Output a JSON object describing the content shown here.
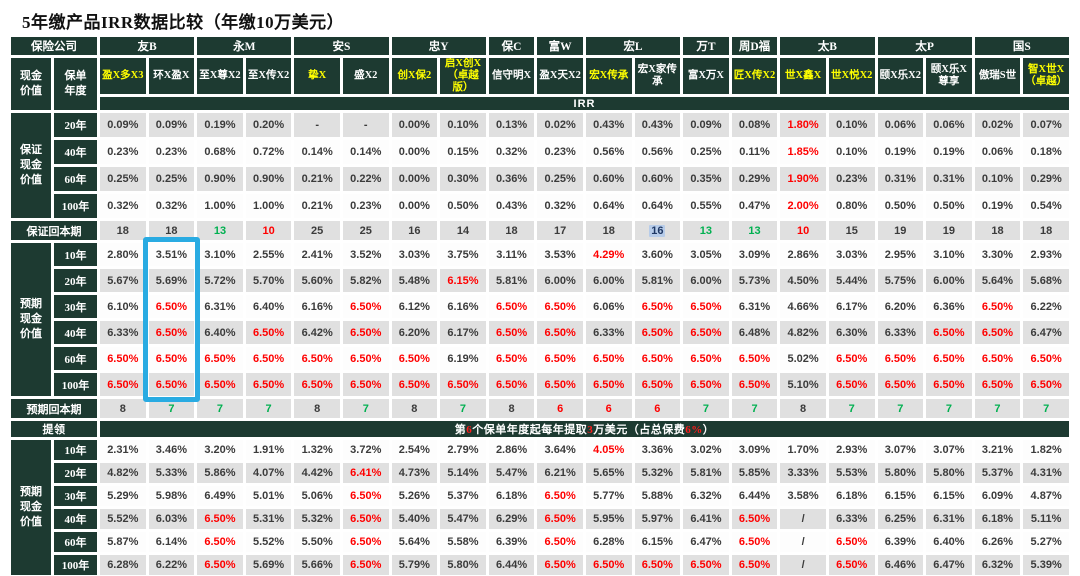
{
  "title": "5年缴产品IRR数据比较（年缴10万美元）",
  "header": {
    "company_label": "保险公司",
    "cash_value_label": "现金价值",
    "policy_year_label": "保单年度",
    "irr_label": "IRR",
    "companies": [
      {
        "name": "友B",
        "span": 2
      },
      {
        "name": "永M",
        "span": 2
      },
      {
        "name": "安S",
        "span": 2
      },
      {
        "name": "忠Y",
        "span": 2
      },
      {
        "name": "保C",
        "span": 1
      },
      {
        "name": "富W",
        "span": 1
      },
      {
        "name": "宏L",
        "span": 2
      },
      {
        "name": "万T",
        "span": 1
      },
      {
        "name": "周D福",
        "span": 1
      },
      {
        "name": "太B",
        "span": 2
      },
      {
        "name": "太P",
        "span": 2
      },
      {
        "name": "国S",
        "span": 2
      }
    ],
    "products": [
      {
        "name": "盈X多X3",
        "yellow": true
      },
      {
        "name": "环X盈X",
        "yellow": false
      },
      {
        "name": "至X尊X2",
        "yellow": false
      },
      {
        "name": "至X传X2",
        "yellow": false
      },
      {
        "name": "挚X",
        "yellow": true
      },
      {
        "name": "盛X2",
        "yellow": false
      },
      {
        "name": "创X保2",
        "yellow": true
      },
      {
        "name": "启X创X（卓越版）",
        "yellow": true
      },
      {
        "name": "信守明X",
        "yellow": false
      },
      {
        "name": "盈X天X2",
        "yellow": false
      },
      {
        "name": "宏X传承",
        "yellow": true
      },
      {
        "name": "宏X家传承",
        "yellow": false
      },
      {
        "name": "富X万X",
        "yellow": false
      },
      {
        "name": "匠X传X2",
        "yellow": true
      },
      {
        "name": "世X鑫X",
        "yellow": true
      },
      {
        "name": "世X悦X2",
        "yellow": true
      },
      {
        "name": "颐X乐X2",
        "yellow": false
      },
      {
        "name": "颐X乐X尊享",
        "yellow": false
      },
      {
        "name": "傲瑞S世",
        "yellow": false
      },
      {
        "name": "智X世X（卓越）",
        "yellow": true
      }
    ]
  },
  "colors": {
    "header_green": "#1d3a31",
    "cell_gray": "#e0e0e0",
    "red": "#ff0000",
    "green": "#00b050",
    "yellow": "#ffff00",
    "highlight_blue": "#29abe2"
  },
  "sections": [
    {
      "type": "rows",
      "label": "保证现金价值",
      "height": "h-guar",
      "rows": [
        {
          "year": "20年",
          "shade": "g",
          "cells": [
            "0.09%",
            "0.09%",
            "0.19%",
            "0.20%",
            "-",
            "-",
            "0.00%",
            "0.10%",
            "0.13%",
            "0.02%",
            "0.43%",
            "0.43%",
            "0.09%",
            "0.08%",
            "1.80%|r",
            "0.10%",
            "0.06%",
            "0.06%",
            "0.02%",
            "0.07%"
          ]
        },
        {
          "year": "40年",
          "shade": "w",
          "cells": [
            "0.23%",
            "0.23%",
            "0.68%",
            "0.72%",
            "0.14%",
            "0.14%",
            "0.00%",
            "0.15%",
            "0.32%",
            "0.23%",
            "0.56%",
            "0.56%",
            "0.25%",
            "0.11%",
            "1.85%|r",
            "0.10%",
            "0.19%",
            "0.19%",
            "0.06%",
            "0.18%"
          ]
        },
        {
          "year": "60年",
          "shade": "g",
          "cells": [
            "0.25%",
            "0.25%",
            "0.90%",
            "0.90%",
            "0.21%",
            "0.22%",
            "0.00%",
            "0.30%",
            "0.36%",
            "0.25%",
            "0.60%",
            "0.60%",
            "0.35%",
            "0.29%",
            "1.90%|r",
            "0.23%",
            "0.31%",
            "0.31%",
            "0.10%",
            "0.29%"
          ]
        },
        {
          "year": "100年",
          "shade": "w",
          "cells": [
            "0.32%",
            "0.32%",
            "1.00%",
            "1.00%",
            "0.21%",
            "0.23%",
            "0.00%",
            "0.50%",
            "0.43%",
            "0.32%",
            "0.64%",
            "0.64%",
            "0.55%",
            "0.47%",
            "2.00%|r",
            "0.80%",
            "0.50%",
            "0.50%",
            "0.19%",
            "0.54%"
          ]
        }
      ]
    },
    {
      "type": "payback",
      "label": "保证回本期",
      "shade": "g",
      "cells": [
        "18",
        "18",
        "13|g",
        "10|r",
        "25",
        "25",
        "16",
        "14",
        "18",
        "17",
        "18",
        "16|b",
        "13|g",
        "13|g",
        "10|r",
        "15",
        "19",
        "19",
        "18",
        "18"
      ]
    },
    {
      "type": "rows",
      "label": "预期现金价值",
      "height": "h-exp",
      "highlight_col": 1,
      "rows": [
        {
          "year": "10年",
          "shade": "w",
          "cells": [
            "2.80%",
            "3.51%",
            "3.10%",
            "2.55%",
            "2.41%",
            "3.52%",
            "3.03%",
            "3.75%",
            "3.11%",
            "3.53%",
            "4.29%|r",
            "3.60%",
            "3.05%",
            "3.09%",
            "2.86%",
            "3.03%",
            "2.95%",
            "3.10%",
            "3.30%",
            "2.93%"
          ]
        },
        {
          "year": "20年",
          "shade": "g",
          "cells": [
            "5.67%",
            "5.69%",
            "5.72%",
            "5.70%",
            "5.60%",
            "5.82%",
            "5.48%",
            "6.15%|r",
            "5.81%",
            "6.00%",
            "6.00%",
            "5.81%",
            "6.00%",
            "5.73%",
            "4.50%",
            "5.44%",
            "5.75%",
            "6.00%",
            "5.64%",
            "5.68%"
          ]
        },
        {
          "year": "30年",
          "shade": "w",
          "cells": [
            "6.10%",
            "6.50%|r",
            "6.31%",
            "6.40%",
            "6.16%",
            "6.50%|r",
            "6.12%",
            "6.16%",
            "6.50%|r",
            "6.50%|r",
            "6.06%",
            "6.50%|r",
            "6.50%|r",
            "6.31%",
            "4.66%",
            "6.17%",
            "6.20%",
            "6.36%",
            "6.50%|r",
            "6.22%"
          ]
        },
        {
          "year": "40年",
          "shade": "g",
          "cells": [
            "6.33%",
            "6.50%|r",
            "6.40%",
            "6.50%|r",
            "6.42%",
            "6.50%|r",
            "6.20%",
            "6.17%",
            "6.50%|r",
            "6.50%|r",
            "6.33%",
            "6.50%|r",
            "6.50%|r",
            "6.48%",
            "4.82%",
            "6.30%",
            "6.33%",
            "6.50%|r",
            "6.50%|r",
            "6.47%"
          ]
        },
        {
          "year": "60年",
          "shade": "w",
          "cells": [
            "6.50%|r",
            "6.50%|r",
            "6.50%|r",
            "6.50%|r",
            "6.50%|r",
            "6.50%|r",
            "6.50%|r",
            "6.19%",
            "6.50%|r",
            "6.50%|r",
            "6.50%|r",
            "6.50%|r",
            "6.50%|r",
            "6.50%|r",
            "5.02%",
            "6.50%|r",
            "6.50%|r",
            "6.50%|r",
            "6.50%|r",
            "6.50%|r"
          ]
        },
        {
          "year": "100年",
          "shade": "g",
          "cells": [
            "6.50%|r",
            "6.50%|r",
            "6.50%|r",
            "6.50%|r",
            "6.50%|r",
            "6.50%|r",
            "6.50%|r",
            "6.50%|r",
            "6.50%|r",
            "6.50%|r",
            "6.50%|r",
            "6.50%|r",
            "6.50%|r",
            "6.50%|r",
            "5.10%",
            "6.50%|r",
            "6.50%|r",
            "6.50%|r",
            "6.50%|r",
            "6.50%|r"
          ]
        }
      ]
    },
    {
      "type": "payback",
      "label": "预期回本期",
      "shade": "g",
      "cells": [
        "8",
        "7|g",
        "7|g",
        "7|g",
        "8",
        "7|g",
        "8",
        "7|g",
        "8",
        "6|r",
        "6|r",
        "6|r",
        "7|g",
        "7|g",
        "8",
        "7|g",
        "7|g",
        "7|g",
        "7|g",
        "7|g"
      ]
    },
    {
      "type": "banner",
      "label": "提领",
      "segments": [
        {
          "t": "第"
        },
        {
          "t": "6",
          "red": true
        },
        {
          "t": "个保单年度起每年提取"
        },
        {
          "t": "3",
          "red": true
        },
        {
          "t": "万美元（占总保费"
        },
        {
          "t": "6%",
          "red": true
        },
        {
          "t": "）"
        }
      ]
    },
    {
      "type": "rows",
      "label": "预期现金价值",
      "height": "h-bot",
      "rows": [
        {
          "year": "10年",
          "shade": "w",
          "cells": [
            "2.31%",
            "3.46%",
            "3.20%",
            "1.91%",
            "1.32%",
            "3.72%",
            "2.54%",
            "2.79%",
            "2.86%",
            "3.64%",
            "4.05%|r",
            "3.36%",
            "3.02%",
            "3.09%",
            "1.70%",
            "2.93%",
            "3.07%",
            "3.07%",
            "3.21%",
            "1.82%"
          ]
        },
        {
          "year": "20年",
          "shade": "g",
          "cells": [
            "4.82%",
            "5.33%",
            "5.86%",
            "4.07%",
            "4.42%",
            "6.41%|r",
            "4.73%",
            "5.14%",
            "5.47%",
            "6.21%",
            "5.65%",
            "5.32%",
            "5.81%",
            "5.85%",
            "3.33%",
            "5.53%",
            "5.80%",
            "5.80%",
            "5.37%",
            "4.31%"
          ]
        },
        {
          "year": "30年",
          "shade": "w",
          "cells": [
            "5.29%",
            "5.98%",
            "6.49%",
            "5.01%",
            "5.06%",
            "6.50%|r",
            "5.26%",
            "5.37%",
            "6.18%",
            "6.50%|r",
            "5.77%",
            "5.88%",
            "6.32%",
            "6.44%",
            "3.58%",
            "6.18%",
            "6.15%",
            "6.15%",
            "6.09%",
            "4.87%"
          ]
        },
        {
          "year": "40年",
          "shade": "g",
          "cells": [
            "5.52%",
            "6.03%",
            "6.50%|r",
            "5.31%",
            "5.32%",
            "6.50%|r",
            "5.40%",
            "5.47%",
            "6.29%",
            "6.50%|r",
            "5.95%",
            "5.97%",
            "6.41%",
            "6.50%|r",
            "/",
            "6.33%",
            "6.25%",
            "6.31%",
            "6.18%",
            "5.11%"
          ]
        },
        {
          "year": "60年",
          "shade": "w",
          "cells": [
            "5.87%",
            "6.14%",
            "6.50%|r",
            "5.52%",
            "5.50%",
            "6.50%|r",
            "5.64%",
            "5.58%",
            "6.39%",
            "6.50%|r",
            "6.28%",
            "6.15%",
            "6.47%",
            "6.50%|r",
            "/",
            "6.50%|r",
            "6.39%",
            "6.40%",
            "6.26%",
            "5.27%"
          ]
        },
        {
          "year": "100年",
          "shade": "g",
          "cells": [
            "6.28%",
            "6.22%",
            "6.50%|r",
            "5.69%",
            "5.66%",
            "6.50%|r",
            "5.79%",
            "5.80%",
            "6.44%",
            "6.50%|r",
            "6.50%|r",
            "6.50%|r",
            "6.50%|r",
            "6.50%|r",
            "/",
            "6.50%|r",
            "6.46%",
            "6.47%",
            "6.32%",
            "5.39%"
          ]
        }
      ]
    }
  ]
}
